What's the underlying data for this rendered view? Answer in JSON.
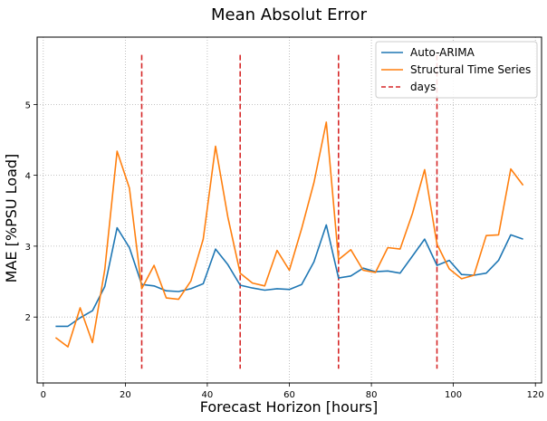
{
  "chart_data": {
    "type": "line",
    "title": "Mean Absolut Error",
    "xlabel": "Forecast Horizon [hours]",
    "ylabel": "MAE [%PSU Load]",
    "xlim": [
      -1.5,
      121.5
    ],
    "ylim": [
      1.07,
      5.95
    ],
    "xticks": [
      0,
      20,
      40,
      60,
      80,
      100,
      120
    ],
    "yticks": [
      2,
      3,
      4,
      5
    ],
    "grid": true,
    "legend_position": "top-right",
    "x": [
      3,
      6,
      9,
      12,
      15,
      18,
      21,
      24,
      27,
      30,
      33,
      36,
      39,
      42,
      45,
      48,
      51,
      54,
      57,
      60,
      63,
      66,
      69,
      72,
      75,
      78,
      81,
      84,
      87,
      90,
      93,
      96,
      99,
      102,
      105,
      108,
      111,
      114,
      117
    ],
    "series": [
      {
        "name": "Auto-ARIMA",
        "color": "#1f77b4",
        "values": [
          1.87,
          1.87,
          1.99,
          2.09,
          2.43,
          3.26,
          2.98,
          2.46,
          2.44,
          2.37,
          2.36,
          2.4,
          2.47,
          2.96,
          2.74,
          2.45,
          2.41,
          2.38,
          2.4,
          2.39,
          2.46,
          2.78,
          3.3,
          2.55,
          2.58,
          2.69,
          2.64,
          2.65,
          2.62,
          2.86,
          3.1,
          2.73,
          2.8,
          2.6,
          2.59,
          2.62,
          2.8,
          3.16,
          3.1
        ]
      },
      {
        "name": "Structural Time Series",
        "color": "#ff7f0e",
        "values": [
          1.71,
          1.58,
          2.13,
          1.64,
          2.67,
          4.34,
          3.82,
          2.4,
          2.73,
          2.27,
          2.25,
          2.51,
          3.1,
          4.41,
          3.41,
          2.62,
          2.48,
          2.44,
          2.94,
          2.66,
          3.25,
          3.9,
          4.75,
          2.81,
          2.95,
          2.66,
          2.63,
          2.98,
          2.96,
          3.46,
          4.08,
          3.03,
          2.68,
          2.54,
          2.59,
          3.15,
          3.16,
          4.09,
          3.86
        ]
      }
    ],
    "vlines": {
      "name": "days",
      "color": "#d62728",
      "style": "dashed",
      "x": [
        24,
        48,
        72,
        96
      ],
      "ymin": 1.27,
      "ymax": 5.7
    }
  }
}
